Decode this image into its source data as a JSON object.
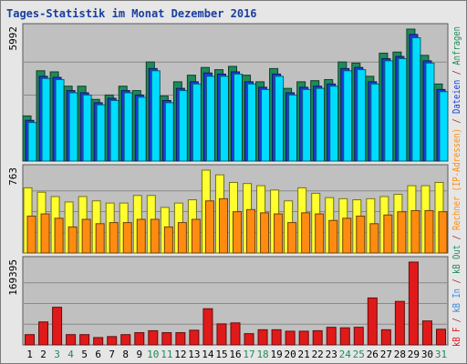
{
  "title": "Tages-Statistik im Monat Dezember 2016",
  "chart_data": {
    "type": "bar",
    "categories": [
      "1",
      "2",
      "3",
      "4",
      "5",
      "6",
      "7",
      "8",
      "9",
      "10",
      "11",
      "12",
      "13",
      "14",
      "15",
      "16",
      "17",
      "18",
      "19",
      "20",
      "21",
      "22",
      "23",
      "24",
      "25",
      "26",
      "27",
      "28",
      "29",
      "30",
      "31"
    ],
    "weekend_days": [
      "3",
      "4",
      "10",
      "11",
      "17",
      "18",
      "24",
      "25",
      "31"
    ],
    "panels": [
      {
        "name": "top",
        "ymax_label": "5992",
        "ymax": 5992,
        "series": [
          {
            "name": "Anfragen",
            "color": "#1f8a5a",
            "values": [
              2050,
              4100,
              4050,
              3400,
              3400,
              2800,
              3000,
              3400,
              3200,
              4500,
              2950,
              3600,
              3900,
              4250,
              4150,
              4300,
              3900,
              3600,
              4200,
              3300,
              3600,
              3650,
              3700,
              4500,
              4450,
              3850,
              4900,
              4950,
              5992,
              4800,
              3500
            ]
          },
          {
            "name": "Dateien",
            "color": "#1c3cd8",
            "values": [
              1850,
              3850,
              3800,
              3200,
              3100,
              2650,
              2850,
              3200,
              3000,
              4200,
              2750,
              3300,
              3600,
              4000,
              3950,
              4050,
              3600,
              3350,
              3950,
              3100,
              3350,
              3400,
              3500,
              4200,
              4250,
              3600,
              4650,
              4750,
              5750,
              4550,
              3250
            ]
          },
          {
            "name": "Seiten",
            "color": "#00dcff",
            "values": [
              1750,
              3750,
              3700,
              3100,
              3000,
              2550,
              2750,
              3100,
              2900,
              4100,
              2650,
              3200,
              3500,
              3850,
              3850,
              3950,
              3500,
              3250,
              3850,
              3000,
              3250,
              3300,
              3400,
              4100,
              4150,
              3500,
              4550,
              4650,
              5600,
              4450,
              3150
            ]
          }
        ]
      },
      {
        "name": "middle",
        "ymax_label": "763",
        "ymax": 763,
        "series": [
          {
            "name": "Besuche",
            "color": "#ffff30",
            "values": [
              600,
              560,
              520,
              470,
              520,
              480,
              460,
              460,
              530,
              530,
              420,
              460,
              490,
              763,
              720,
              650,
              640,
              620,
              580,
              480,
              600,
              550,
              510,
              500,
              490,
              500,
              520,
              540,
              620,
              620,
              650
            ]
          },
          {
            "name": "Rechner (IP-Adressen)",
            "color": "#ff8c10",
            "values": [
              340,
              360,
              320,
              240,
              310,
              270,
              280,
              280,
              310,
              310,
              240,
              280,
              310,
              480,
              500,
              380,
              400,
              370,
              360,
              280,
              370,
              360,
              300,
              320,
              340,
              270,
              350,
              380,
              390,
              390,
              380
            ]
          }
        ]
      },
      {
        "name": "bottom",
        "ymax_label": "169395",
        "ymax": 169395,
        "series": [
          {
            "name": "kB F",
            "color": "#e01a1a",
            "values": [
              21000,
              47000,
              77000,
              21000,
              21000,
              15000,
              17000,
              21000,
              25000,
              29000,
              25000,
              25000,
              30000,
              74000,
              43000,
              45000,
              23000,
              31000,
              31000,
              28000,
              28000,
              29000,
              36000,
              35000,
              36000,
              96000,
              31000,
              89000,
              169395,
              49000,
              32000
            ]
          }
        ]
      }
    ],
    "legend_labels": {
      "kb_f": "kB F",
      "sep1": " / ",
      "kb_in": "kB In",
      "sep2": " / ",
      "kb_out": "kB Out",
      "sep3": " / ",
      "rechner": "Rechner (IP-Adressen)",
      "sep4": " / ",
      "dateien": "Dateien",
      "sep5": " / ",
      "anfragen": "Anfragen"
    },
    "legend_colors": {
      "kb_f": "#e01a1a",
      "kb_in": "#3a8ad8",
      "kb_out": "#1f8a5a",
      "rechner": "#ff8c10",
      "dateien": "#1c3cd8",
      "anfragen": "#1f8a5a",
      "sep": "#8a1a1a"
    },
    "tick_colors": {
      "weekday": "#000000",
      "weekend": "#1f8a5a"
    },
    "panel_bg": "#c0c0c0",
    "grid": true
  }
}
